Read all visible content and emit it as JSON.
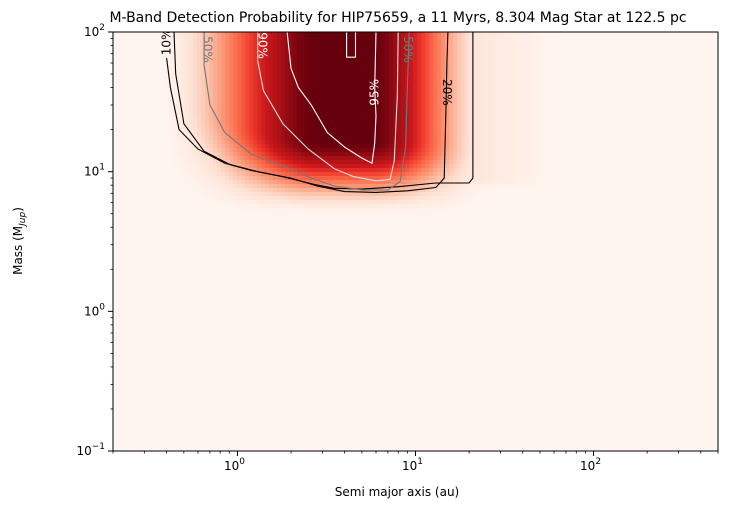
{
  "chart_data": {
    "type": "heatmap",
    "title": "M-Band Detection Probability for HIP75659, a 11 Myrs, 8.304 Mag Star at 122.5 pc",
    "xlabel": "Semi major axis (au)",
    "ylabel_main": "Mass (M",
    "ylabel_sub": "Jup",
    "ylabel_close": ")",
    "x_scale": "log",
    "y_scale": "log",
    "xlim": [
      0.2,
      500
    ],
    "ylim": [
      0.1,
      100
    ],
    "colormap": "Reds",
    "x_ticks": [
      {
        "value": 1,
        "base": "10",
        "exp": "0"
      },
      {
        "value": 10,
        "base": "10",
        "exp": "1"
      },
      {
        "value": 100,
        "base": "10",
        "exp": "2"
      }
    ],
    "y_ticks": [
      {
        "value": 0.1,
        "base": "10",
        "exp": "−1"
      },
      {
        "value": 1,
        "base": "10",
        "exp": "0"
      },
      {
        "value": 10,
        "base": "10",
        "exp": "1"
      },
      {
        "value": 100,
        "base": "10",
        "exp": "2"
      }
    ],
    "contours": [
      {
        "level": 10,
        "label": "10%",
        "color": "#000000",
        "points": [
          [
            0.4,
            65
          ],
          [
            0.42,
            40
          ],
          [
            0.47,
            20
          ],
          [
            0.6,
            14.5
          ],
          [
            0.85,
            11.5
          ],
          [
            1.2,
            10.2
          ],
          [
            1.8,
            9.2
          ],
          [
            2.7,
            8.1
          ],
          [
            3.5,
            7.6
          ],
          [
            5,
            7.5
          ],
          [
            8,
            7.8
          ],
          [
            13,
            8.3
          ],
          [
            20,
            8.3
          ],
          [
            21,
            9
          ],
          [
            21,
            25
          ],
          [
            21,
            60
          ],
          [
            21,
            100
          ]
        ],
        "labels": [
          {
            "text": "10%",
            "x": 0.4,
            "y": 85,
            "rot": -90,
            "color": "#000000"
          }
        ]
      },
      {
        "level": 20,
        "label": "20%",
        "color": "#000000",
        "points": [
          [
            0.44,
            100
          ],
          [
            0.45,
            50
          ],
          [
            0.5,
            22
          ],
          [
            0.65,
            14
          ],
          [
            0.9,
            11.3
          ],
          [
            1.3,
            10
          ],
          [
            2,
            9
          ],
          [
            2.8,
            7.9
          ],
          [
            4,
            7.2
          ],
          [
            6,
            7.1
          ],
          [
            9,
            7.3
          ],
          [
            13,
            7.7
          ],
          [
            14.5,
            9
          ],
          [
            14.8,
            25
          ],
          [
            15,
            60
          ],
          [
            15.2,
            100
          ]
        ],
        "labels": [
          {
            "text": "20%",
            "x": 15,
            "y": 37,
            "rot": 90,
            "color": "#000000"
          }
        ]
      },
      {
        "level": 50,
        "label": "50%",
        "color": "#777777",
        "points": [
          [
            0.65,
            100
          ],
          [
            0.65,
            58
          ],
          [
            0.7,
            30
          ],
          [
            0.85,
            19
          ],
          [
            1.2,
            13.3
          ],
          [
            1.8,
            11
          ],
          [
            2.6,
            9
          ],
          [
            3.5,
            7.9
          ],
          [
            5,
            7.4
          ],
          [
            7,
            7.4
          ],
          [
            8.2,
            8.5
          ],
          [
            8.8,
            15
          ],
          [
            9,
            40
          ],
          [
            9.2,
            100
          ]
        ],
        "labels": [
          {
            "text": "50%",
            "x": 0.68,
            "y": 75,
            "rot": 90,
            "color": "#777777"
          },
          {
            "text": "50%",
            "x": 9.1,
            "y": 75,
            "rot": 90,
            "color": "#777777"
          }
        ]
      },
      {
        "level": 90,
        "label": "90%",
        "color": "#dddddd",
        "points": [
          [
            1.3,
            100
          ],
          [
            1.3,
            62
          ],
          [
            1.4,
            38
          ],
          [
            1.8,
            22
          ],
          [
            2.5,
            14.5
          ],
          [
            3.5,
            10.5
          ],
          [
            4.5,
            9.2
          ],
          [
            6,
            8.6
          ],
          [
            7.2,
            8.8
          ],
          [
            7.6,
            12
          ],
          [
            7.9,
            35
          ],
          [
            8,
            100
          ]
        ],
        "labels": [
          {
            "text": "90%",
            "x": 1.38,
            "y": 80,
            "rot": 90,
            "color": "#ffffff"
          }
        ]
      },
      {
        "level": 95,
        "label": "95%",
        "color": "#ffffff",
        "points": [
          [
            1.9,
            100
          ],
          [
            2,
            55
          ],
          [
            2.2,
            40
          ],
          [
            2.6,
            30
          ],
          [
            3.2,
            19
          ],
          [
            4,
            15
          ],
          [
            5,
            12.5
          ],
          [
            5.7,
            11.5
          ],
          [
            5.9,
            16
          ],
          [
            6,
            25
          ],
          [
            5.9,
            40
          ],
          [
            6,
            100
          ]
        ],
        "extra": [
          [
            4.1,
            100
          ],
          [
            4.1,
            66
          ],
          [
            4.6,
            66
          ],
          [
            4.6,
            100
          ]
        ],
        "labels": [
          {
            "text": "95%",
            "x": 5.9,
            "y": 37,
            "rot": -90,
            "color": "#ffffff"
          }
        ]
      }
    ]
  }
}
